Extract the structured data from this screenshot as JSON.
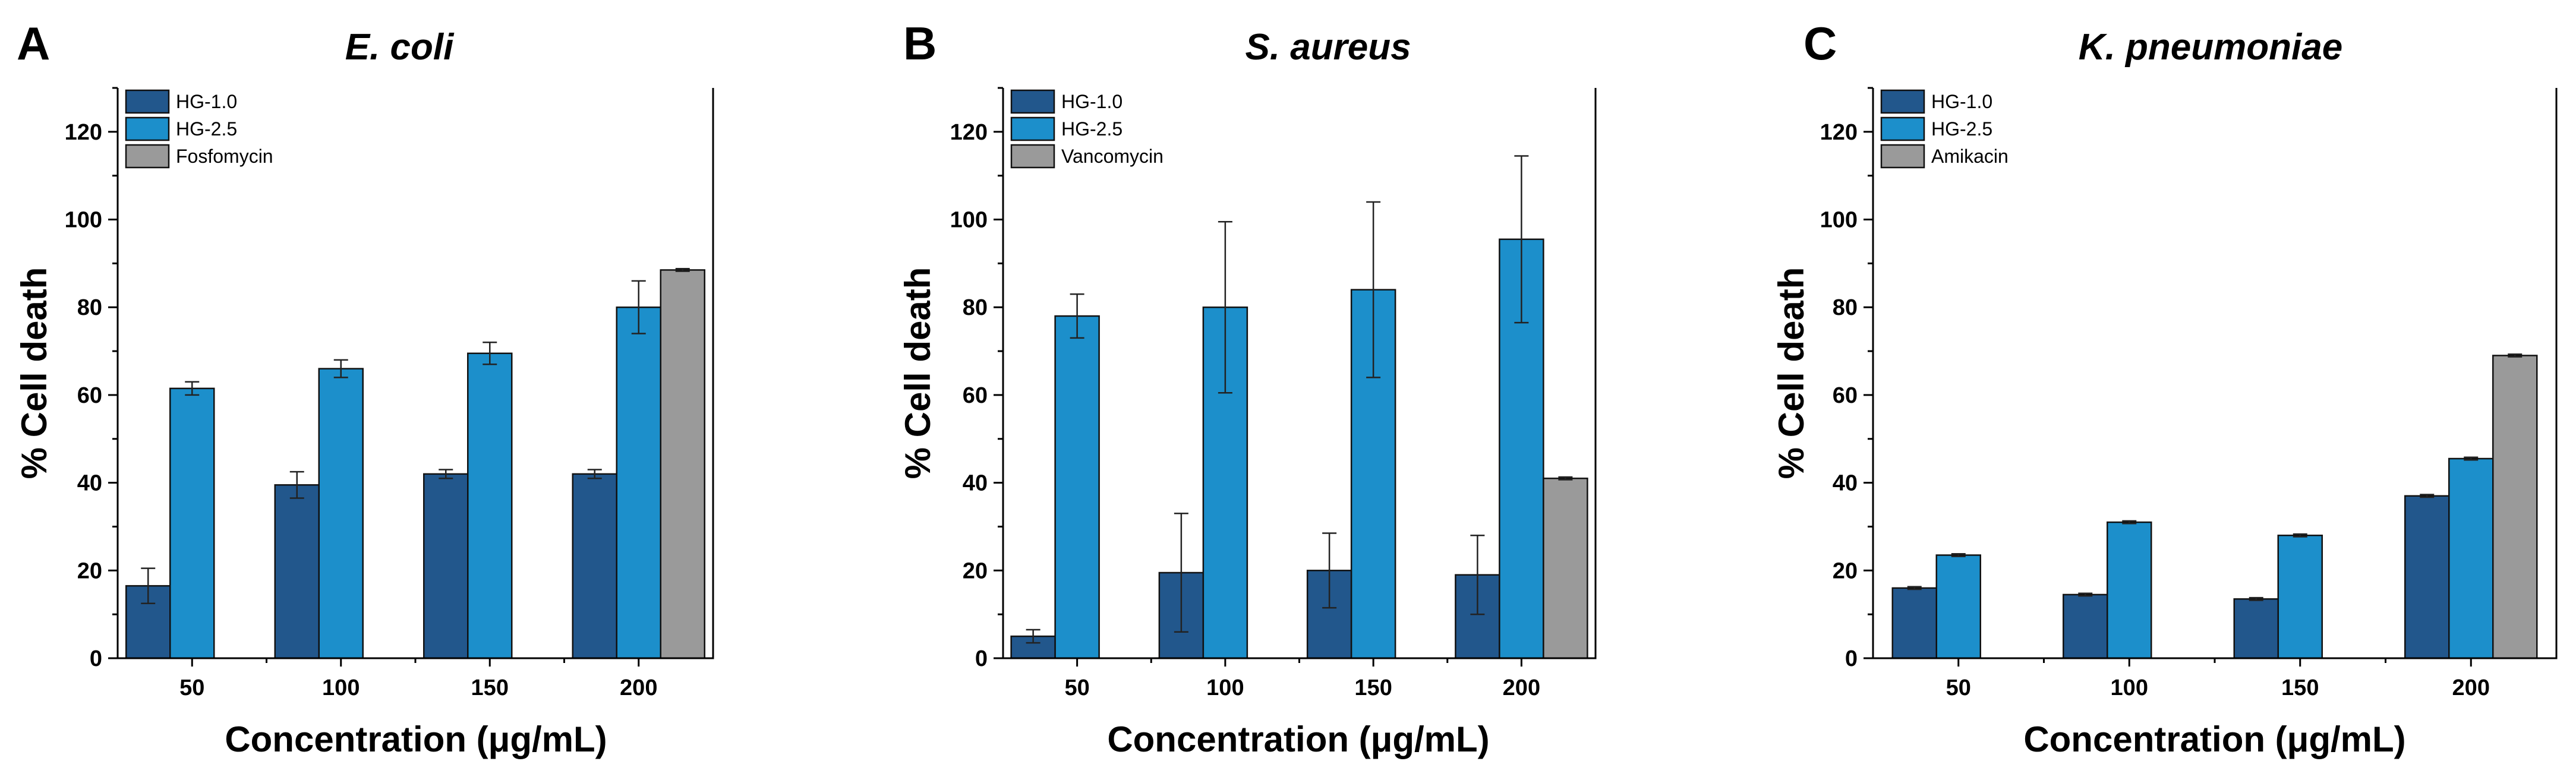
{
  "chart_data": [
    {
      "type": "bar",
      "panel": "A",
      "title": "E. coli",
      "xlabel": "Concentration (μg/mL)",
      "ylabel": "% Cell death",
      "categories": [
        "50",
        "100",
        "150",
        "200"
      ],
      "ylim": [
        0,
        130
      ],
      "yticks": [
        0,
        20,
        40,
        60,
        80,
        100,
        120
      ],
      "legend_position": "top-left",
      "grid": false,
      "series": [
        {
          "name": "HG-1.0",
          "color": "#22578c",
          "values": [
            16.5,
            39.5,
            42,
            42
          ],
          "errors": [
            4,
            3,
            1,
            1
          ]
        },
        {
          "name": "HG-2.5",
          "color": "#1c8fcb",
          "values": [
            61.5,
            66,
            69.5,
            80
          ],
          "errors": [
            1.5,
            2,
            2.5,
            6
          ]
        },
        {
          "name": "Fosfomycin",
          "color": "#9a9a9a",
          "values": [
            null,
            null,
            null,
            88.5
          ],
          "errors": [
            null,
            null,
            null,
            0.3
          ]
        }
      ]
    },
    {
      "type": "bar",
      "panel": "B",
      "title": "S. aureus",
      "xlabel": "Concentration (μg/mL)",
      "ylabel": "% Cell death",
      "categories": [
        "50",
        "100",
        "150",
        "200"
      ],
      "ylim": [
        0,
        130
      ],
      "yticks": [
        0,
        20,
        40,
        60,
        80,
        100,
        120
      ],
      "legend_position": "top-left",
      "grid": false,
      "series": [
        {
          "name": "HG-1.0",
          "color": "#22578c",
          "values": [
            5,
            19.5,
            20,
            19
          ],
          "errors": [
            1.5,
            13.5,
            8.5,
            9
          ]
        },
        {
          "name": "HG-2.5",
          "color": "#1c8fcb",
          "values": [
            78,
            80,
            84,
            95.5
          ],
          "errors": [
            5,
            19.5,
            20,
            19
          ]
        },
        {
          "name": "Vancomycin",
          "color": "#9a9a9a",
          "values": [
            null,
            null,
            null,
            41
          ],
          "errors": [
            null,
            null,
            null,
            0.3
          ]
        }
      ]
    },
    {
      "type": "bar",
      "panel": "C",
      "title": "K. pneumoniae",
      "xlabel": "Concentration (μg/mL)",
      "ylabel": "% Cell death",
      "categories": [
        "50",
        "100",
        "150",
        "200"
      ],
      "ylim": [
        0,
        130
      ],
      "yticks": [
        0,
        20,
        40,
        60,
        80,
        100,
        120
      ],
      "legend_position": "top-left",
      "grid": false,
      "series": [
        {
          "name": "HG-1.0",
          "color": "#22578c",
          "values": [
            16,
            14.5,
            13.5,
            37
          ],
          "errors": [
            0.3,
            0.3,
            0.3,
            0.3
          ]
        },
        {
          "name": "HG-2.5",
          "color": "#1c8fcb",
          "values": [
            23.5,
            31,
            28,
            45.5
          ],
          "errors": [
            0.3,
            0.3,
            0.3,
            0.3
          ]
        },
        {
          "name": "Amikacin",
          "color": "#9a9a9a",
          "values": [
            null,
            null,
            null,
            69
          ],
          "errors": [
            null,
            null,
            null,
            0.3
          ]
        }
      ]
    }
  ]
}
